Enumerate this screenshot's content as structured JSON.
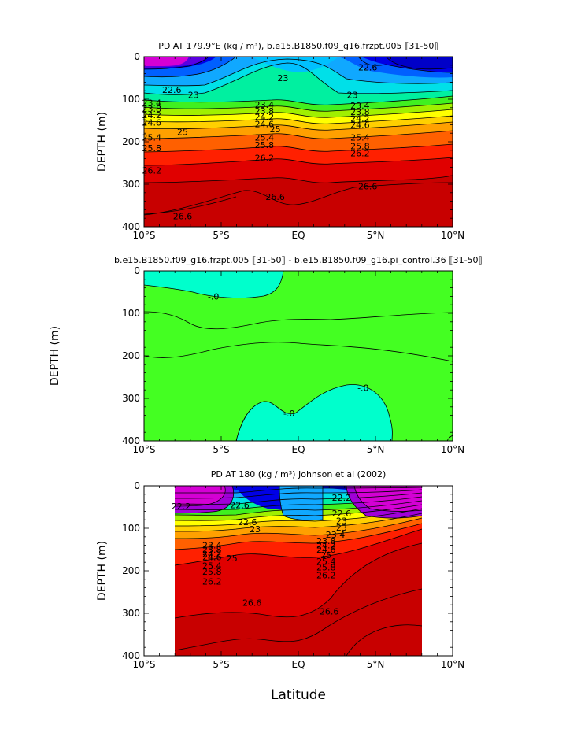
{
  "chart_data": [
    {
      "type": "heatmap",
      "title": "PD AT 179.9°E (kg / m³), b.e15.B1850.f09_g16.frzpt.005 ⟦31-50⟧",
      "ylabel": "DEPTH (m)",
      "xlabel": "",
      "x_ticks": [
        "10°S",
        "5°S",
        "EQ",
        "5°N",
        "10°N"
      ],
      "y_ticks": [
        "0",
        "100",
        "200",
        "300",
        "400"
      ],
      "xlim": [
        -10,
        10
      ],
      "ylim": [
        400,
        0
      ],
      "y_inverted": true,
      "x_units": "degrees latitude",
      "y_units": "m",
      "colors": [
        "#d400d4",
        "#8a00e8",
        "#2020e0",
        "#0060ff",
        "#10a8ff",
        "#00e0e8",
        "#00f0a0",
        "#40f020",
        "#a0f000",
        "#ffff00",
        "#ffd000",
        "#ffa000",
        "#ff6000",
        "#ff2000",
        "#e00000",
        "#c80000"
      ],
      "contour_labels": [
        {
          "text": "22.6",
          "lat": -8.2,
          "depth": 78
        },
        {
          "text": "23",
          "lat": -6.8,
          "depth": 90
        },
        {
          "text": "23",
          "lat": -1.0,
          "depth": 50
        },
        {
          "text": "22.6",
          "lat": 4.5,
          "depth": 25
        },
        {
          "text": "23",
          "lat": 3.5,
          "depth": 90
        },
        {
          "text": "23.4",
          "lat": -9.5,
          "depth": 108
        },
        {
          "text": "23.8",
          "lat": -9.5,
          "depth": 122
        },
        {
          "text": "24.2",
          "lat": -9.5,
          "depth": 137
        },
        {
          "text": "24.6",
          "lat": -9.5,
          "depth": 155
        },
        {
          "text": "23.4",
          "lat": -2.2,
          "depth": 113
        },
        {
          "text": "23.8",
          "lat": -2.2,
          "depth": 128
        },
        {
          "text": "24.2",
          "lat": -2.2,
          "depth": 142
        },
        {
          "text": "24.6",
          "lat": -2.2,
          "depth": 158
        },
        {
          "text": "23.4",
          "lat": 4.0,
          "depth": 115
        },
        {
          "text": "23.8",
          "lat": 4.0,
          "depth": 130
        },
        {
          "text": "24.2",
          "lat": 4.0,
          "depth": 145
        },
        {
          "text": "24.6",
          "lat": 4.0,
          "depth": 160
        },
        {
          "text": "25",
          "lat": -7.5,
          "depth": 177
        },
        {
          "text": "25",
          "lat": -1.5,
          "depth": 170
        },
        {
          "text": "25.4",
          "lat": -9.5,
          "depth": 190
        },
        {
          "text": "25.4",
          "lat": -2.2,
          "depth": 190
        },
        {
          "text": "25.4",
          "lat": 4.0,
          "depth": 190
        },
        {
          "text": "25.8",
          "lat": -9.5,
          "depth": 215
        },
        {
          "text": "25.8",
          "lat": -2.2,
          "depth": 207
        },
        {
          "text": "25.8",
          "lat": 4.0,
          "depth": 210
        },
        {
          "text": "26.2",
          "lat": -9.5,
          "depth": 268
        },
        {
          "text": "26.2",
          "lat": -2.2,
          "depth": 238
        },
        {
          "text": "26.2",
          "lat": 4.0,
          "depth": 227
        },
        {
          "text": "26.6",
          "lat": -1.5,
          "depth": 330
        },
        {
          "text": "26.6",
          "lat": 4.5,
          "depth": 305
        },
        {
          "text": "26.6",
          "lat": -7.5,
          "depth": 375
        }
      ]
    },
    {
      "type": "heatmap",
      "title": "b.e15.B1850.f09_g16.frzpt.005 ⟦31-50⟧ - b.e15.B1850.f09_g16.pi_control.36 ⟦31-50⟧",
      "ylabel": "DEPTH (m)",
      "xlabel": "",
      "x_ticks": [
        "10°S",
        "5°S",
        "EQ",
        "5°N",
        "10°N"
      ],
      "y_ticks": [
        "0",
        "100",
        "200",
        "300",
        "400"
      ],
      "xlim": [
        -10,
        10
      ],
      "ylim": [
        400,
        0
      ],
      "y_inverted": true,
      "colors": [
        "#00ffcc",
        "#44ff22"
      ],
      "contour_labels": [
        {
          "text": "-.0",
          "lat": -5.5,
          "depth": 60
        },
        {
          "text": "-.0",
          "lat": 4.2,
          "depth": 275
        },
        {
          "text": "-.0",
          "lat": -0.6,
          "depth": 335
        }
      ]
    },
    {
      "type": "heatmap",
      "title": "PD AT 180 (kg / m³) Johnson et al (2002)",
      "ylabel": "DEPTH (m)",
      "xlabel": "Latitude",
      "x_ticks": [
        "10°S",
        "5°S",
        "EQ",
        "5°N",
        "10°N"
      ],
      "y_ticks": [
        "0",
        "100",
        "200",
        "300",
        "400"
      ],
      "xlim": [
        -10,
        10
      ],
      "ylim": [
        400,
        0
      ],
      "y_inverted": true,
      "data_lat_range": [
        -8,
        8
      ],
      "contour_labels": [
        {
          "text": "22.2",
          "lat": -7.6,
          "depth": 48
        },
        {
          "text": "22.2",
          "lat": 2.8,
          "depth": 28
        },
        {
          "text": "22.6",
          "lat": -3.8,
          "depth": 45
        },
        {
          "text": "22.6",
          "lat": -3.3,
          "depth": 85
        },
        {
          "text": "22.6",
          "lat": 2.8,
          "depth": 65
        },
        {
          "text": "23",
          "lat": 2.8,
          "depth": 82
        },
        {
          "text": "23",
          "lat": -2.8,
          "depth": 102
        },
        {
          "text": "23",
          "lat": 2.8,
          "depth": 98
        },
        {
          "text": "23.4",
          "lat": 2.4,
          "depth": 115
        },
        {
          "text": "23.4",
          "lat": -5.6,
          "depth": 140
        },
        {
          "text": "23.8",
          "lat": -5.6,
          "depth": 150
        },
        {
          "text": "24.2",
          "lat": -5.6,
          "depth": 160
        },
        {
          "text": "24.6",
          "lat": -5.6,
          "depth": 168
        },
        {
          "text": "25",
          "lat": -4.3,
          "depth": 170
        },
        {
          "text": "25.4",
          "lat": -5.6,
          "depth": 188
        },
        {
          "text": "25.8",
          "lat": -5.6,
          "depth": 202
        },
        {
          "text": "26.2",
          "lat": -5.6,
          "depth": 225
        },
        {
          "text": "23.8",
          "lat": 1.8,
          "depth": 130
        },
        {
          "text": "24.2",
          "lat": 1.8,
          "depth": 140
        },
        {
          "text": "24.6",
          "lat": 1.8,
          "depth": 150
        },
        {
          "text": "25",
          "lat": 1.8,
          "depth": 163
        },
        {
          "text": "25.4",
          "lat": 1.8,
          "depth": 178
        },
        {
          "text": "25.8",
          "lat": 1.8,
          "depth": 192
        },
        {
          "text": "26.2",
          "lat": 1.8,
          "depth": 210
        },
        {
          "text": "26.6",
          "lat": -3.0,
          "depth": 275
        },
        {
          "text": "26.6",
          "lat": 2.0,
          "depth": 295
        }
      ]
    }
  ]
}
